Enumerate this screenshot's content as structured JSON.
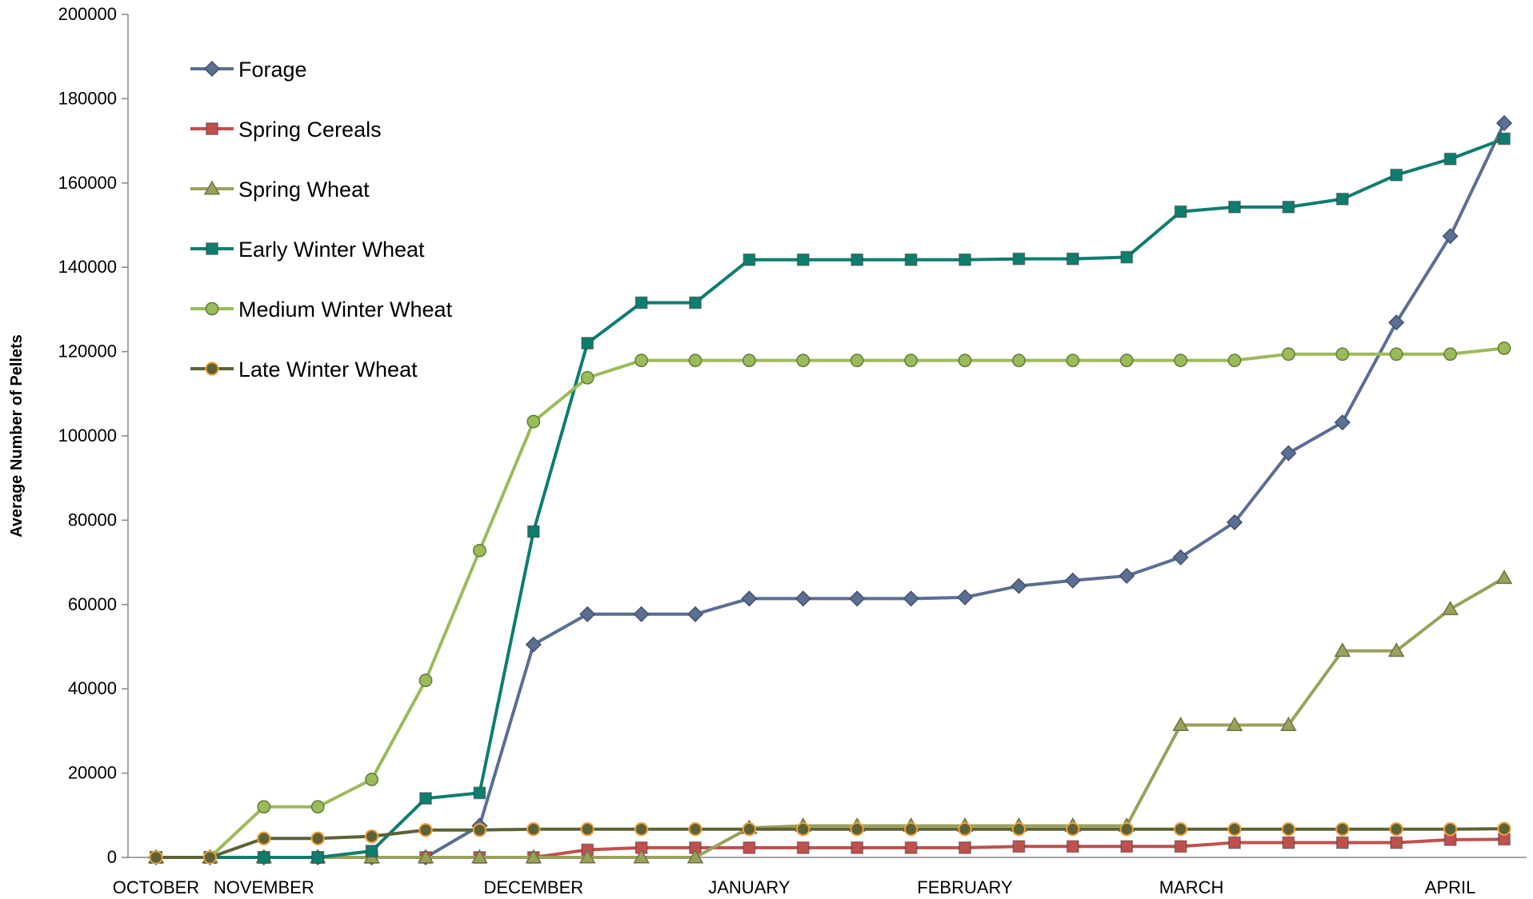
{
  "chart_data": {
    "type": "line",
    "title": "",
    "xlabel": "",
    "ylabel": "Average Number of Pellets",
    "ylim": [
      0,
      200000
    ],
    "yticks": [
      0,
      20000,
      40000,
      60000,
      80000,
      100000,
      120000,
      140000,
      160000,
      180000,
      200000
    ],
    "ytick_labels": [
      "0",
      "20000",
      "40000",
      "60000",
      "80000",
      "100000",
      "120000",
      "140000",
      "160000",
      "180000",
      "200000"
    ],
    "grid": false,
    "legend_position": "top-left",
    "x_month_labels": [
      {
        "label": "OCTOBER",
        "at": 0
      },
      {
        "label": "NOVEMBER",
        "at": 2
      },
      {
        "label": "DECEMBER",
        "at": 7
      },
      {
        "label": "JANUARY",
        "at": 11
      },
      {
        "label": "FEBRUARY",
        "at": 15
      },
      {
        "label": "MARCH",
        "at": 19.2
      },
      {
        "label": "APRIL",
        "at": 24
      }
    ],
    "series": [
      {
        "name": "Forage",
        "color": "#5B6E93",
        "marker": "diamond",
        "values": [
          0,
          0,
          0,
          0,
          0,
          0,
          7500,
          50500,
          57700,
          57700,
          57700,
          61400,
          61400,
          61400,
          61400,
          61700,
          64400,
          65700,
          66800,
          71200,
          79500,
          95900,
          103200,
          126900,
          147400,
          174200
        ]
      },
      {
        "name": "Spring Cereals",
        "color": "#C0504D",
        "marker": "square",
        "values": [
          0,
          0,
          0,
          0,
          0,
          0,
          0,
          0,
          1800,
          2300,
          2300,
          2300,
          2300,
          2300,
          2300,
          2300,
          2600,
          2600,
          2600,
          2600,
          3500,
          3500,
          3500,
          3500,
          4200,
          4300
        ]
      },
      {
        "name": "Spring Wheat",
        "color": "#9BA05B",
        "marker": "triangle",
        "values": [
          0,
          0,
          0,
          0,
          0,
          0,
          0,
          0,
          0,
          0,
          0,
          7000,
          7500,
          7500,
          7500,
          7500,
          7500,
          7500,
          7500,
          31400,
          31400,
          31400,
          49000,
          49000,
          58900,
          66300
        ]
      },
      {
        "name": "Early Winter Wheat",
        "color": "#0E7D6E",
        "marker": "square",
        "values": [
          0,
          0,
          0,
          0,
          1500,
          14000,
          15300,
          77300,
          122000,
          131600,
          131600,
          141800,
          141800,
          141800,
          141800,
          141800,
          142000,
          142000,
          142400,
          153200,
          154300,
          154300,
          156200,
          161900,
          165700,
          170500
        ]
      },
      {
        "name": "Medium Winter Wheat",
        "color": "#9BBB59",
        "marker": "circle",
        "values": [
          0,
          0,
          12000,
          12000,
          18500,
          42000,
          72800,
          103400,
          113800,
          117900,
          117900,
          117900,
          117900,
          117900,
          117900,
          117900,
          117900,
          117900,
          117900,
          117900,
          117900,
          119400,
          119400,
          119400,
          119400,
          120800
        ]
      },
      {
        "name": "Late Winter Wheat",
        "color": "#5D6236",
        "marker": "circle-orange",
        "values": [
          0,
          0,
          4500,
          4500,
          5000,
          6500,
          6500,
          6700,
          6700,
          6700,
          6700,
          6700,
          6700,
          6700,
          6700,
          6700,
          6700,
          6700,
          6700,
          6700,
          6700,
          6700,
          6700,
          6700,
          6700,
          6800
        ]
      }
    ]
  }
}
